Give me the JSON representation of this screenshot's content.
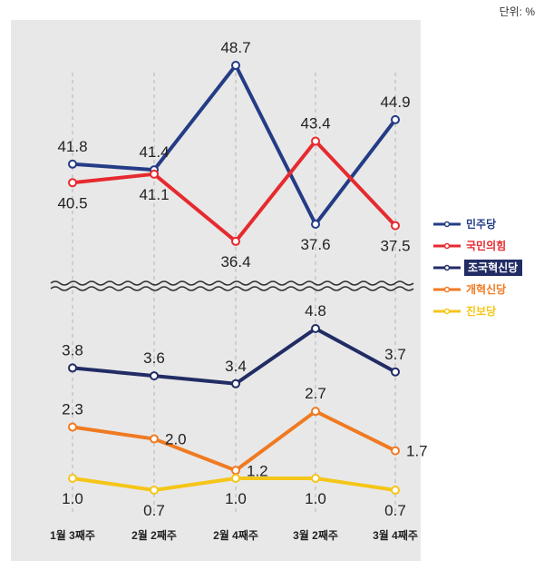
{
  "unit_label": "단위: %",
  "chart_data": {
    "type": "line",
    "categories": [
      "1월 3째주",
      "2월 2째주",
      "2월 4째주",
      "3월 2째주",
      "3월 4째주"
    ],
    "axis_break": true,
    "series": [
      {
        "id": "s1",
        "name": "민주당",
        "color": "#243c86",
        "values": [
          41.8,
          41.4,
          48.7,
          37.6,
          44.9
        ],
        "label_pos": [
          "above",
          "above",
          "above",
          "below",
          "above"
        ]
      },
      {
        "id": "s2",
        "name": "국민의힘",
        "color": "#e62a2f",
        "values": [
          40.5,
          41.1,
          36.4,
          43.4,
          37.5
        ],
        "label_pos": [
          "below",
          "below",
          "below",
          "above",
          "below"
        ]
      },
      {
        "id": "s3",
        "name": "조국혁신당",
        "color": "#222c64",
        "values": [
          3.8,
          3.6,
          3.4,
          4.8,
          3.7
        ],
        "label_pos": [
          "above",
          "above",
          "above",
          "above",
          "above"
        ]
      },
      {
        "id": "s4",
        "name": "개혁신당",
        "color": "#f07a22",
        "values": [
          2.3,
          2.0,
          1.2,
          2.7,
          1.7
        ],
        "label_pos": [
          "above",
          "right",
          "right",
          "above",
          "right"
        ]
      },
      {
        "id": "s5",
        "name": "진보당",
        "color": "#f5c518",
        "values": [
          1.0,
          0.7,
          1.0,
          1.0,
          0.7
        ],
        "label_pos": [
          "below",
          "below",
          "below",
          "below",
          "below"
        ]
      }
    ],
    "upper_range": [
      35,
      50
    ],
    "lower_range": [
      0.5,
      5.0
    ],
    "legend": [
      "민주당",
      "국민의힘",
      "조국혁신당",
      "개혁신당",
      "진보당"
    ],
    "legend_position": "right"
  }
}
